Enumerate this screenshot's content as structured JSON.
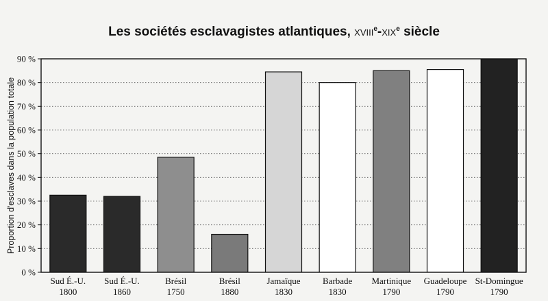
{
  "chart_data": {
    "type": "bar",
    "title": {
      "main": "Les sociétés esclavagistes atlantiques,",
      "century_1": "XVIII",
      "sup_1": "e",
      "dash": "-",
      "century_2": "XIX",
      "sup_2": "e",
      "suffix": "siècle"
    },
    "ylabel": "Proportion d'esclaves dans la population totale",
    "xlabel": "",
    "ylim": [
      0,
      90
    ],
    "ytick_step": 10,
    "ytick_suffix": " %",
    "grid": "horizontal-dotted",
    "categories": [
      {
        "name": "Sud É.-U.",
        "year": "1800"
      },
      {
        "name": "Sud É.-U.",
        "year": "1860"
      },
      {
        "name": "Brésil",
        "year": "1750"
      },
      {
        "name": "Brésil",
        "year": "1880"
      },
      {
        "name": "Jamaïque",
        "year": "1830"
      },
      {
        "name": "Barbade",
        "year": "1830"
      },
      {
        "name": "Martinique",
        "year": "1790"
      },
      {
        "name": "Guadeloupe",
        "year": "1790"
      },
      {
        "name": "St-Domingue",
        "year": "1790"
      }
    ],
    "values": [
      32.5,
      32,
      48.5,
      16,
      84.5,
      80,
      85,
      85.5,
      90.5
    ],
    "bar_colors": [
      "#2a2a2a",
      "#2a2a2a",
      "#8e8e8e",
      "#7a7a7a",
      "#d6d6d6",
      "#ffffff",
      "#808080",
      "#ffffff",
      "#222222"
    ]
  }
}
